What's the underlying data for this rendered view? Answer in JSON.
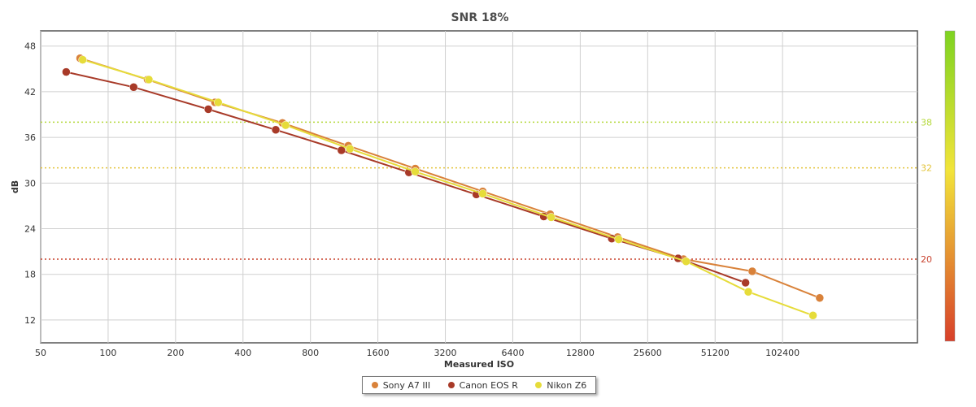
{
  "chart_data": {
    "type": "line",
    "title": "SNR 18%",
    "xlabel": "Measured ISO",
    "ylabel": "dB",
    "x_scale": "log2",
    "x_ticks": [
      50,
      100,
      200,
      400,
      800,
      1600,
      3200,
      6400,
      12800,
      25600,
      51200,
      102400
    ],
    "xlim": [
      50,
      409600
    ],
    "y_ticks": [
      12,
      18,
      24,
      30,
      36,
      42,
      48
    ],
    "ylim": [
      9,
      50
    ],
    "grid": true,
    "legend_position": "bottom",
    "reference_lines": [
      {
        "y": 38,
        "label": "38",
        "color": "#b4d83a"
      },
      {
        "y": 32,
        "label": "32",
        "color": "#e3c43a"
      },
      {
        "y": 20,
        "label": "20",
        "color": "#c8402c"
      }
    ],
    "series": [
      {
        "name": "Sony A7 III",
        "color": "#d9823a",
        "x": [
          75,
          150,
          300,
          600,
          1180,
          2350,
          4700,
          9400,
          18800,
          37000,
          75000,
          150000
        ],
        "y": [
          46.4,
          43.6,
          40.6,
          37.9,
          34.9,
          31.9,
          28.9,
          25.9,
          22.9,
          20.0,
          18.4,
          14.9
        ]
      },
      {
        "name": "Canon EOS R",
        "color": "#a83a28",
        "x": [
          65,
          130,
          280,
          560,
          1100,
          2200,
          4400,
          8800,
          17700,
          35000,
          70000
        ],
        "y": [
          44.6,
          42.6,
          39.7,
          37.0,
          34.3,
          31.4,
          28.5,
          25.6,
          22.7,
          20.1,
          16.9
        ]
      },
      {
        "name": "Nikon Z6",
        "color": "#e6dc3a",
        "x": [
          77,
          152,
          310,
          620,
          1200,
          2350,
          4700,
          9500,
          19000,
          38000,
          72000,
          140000
        ],
        "y": [
          46.2,
          43.6,
          40.6,
          37.6,
          34.5,
          31.5,
          28.6,
          25.5,
          22.6,
          19.7,
          15.7,
          12.6
        ]
      }
    ],
    "colorbar": {
      "colors": [
        "#7ed321",
        "#f2e43a",
        "#d8402a"
      ]
    }
  }
}
